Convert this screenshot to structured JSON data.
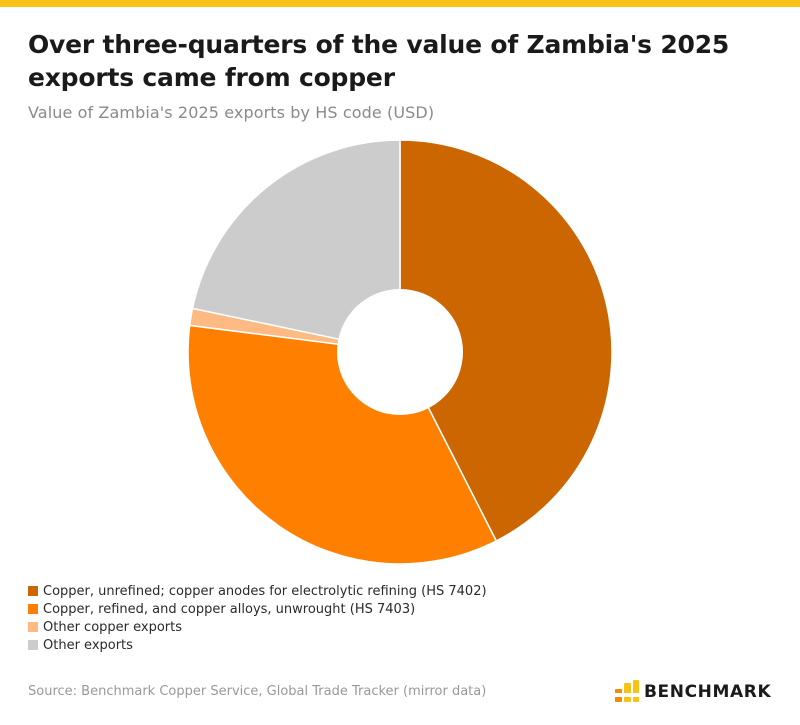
{
  "colors": {
    "accent_bar": "#F9C315",
    "background": "#ffffff"
  },
  "header": {
    "title": "Over three-quarters of the value of Zambia's 2025 exports came from copper",
    "subtitle": "Value of Zambia's 2025 exports by HS code (USD)"
  },
  "chart_data": {
    "type": "pie",
    "style": "donut",
    "title": "Over three-quarters of the value of Zambia's 2025 exports came from copper",
    "subtitle": "Value of Zambia's 2025 exports by HS code (USD)",
    "start": "12 o'clock, clockwise",
    "legend_position": "bottom-left",
    "series": [
      {
        "name": "Copper, unrefined; copper anodes for electrolytic refining (HS 7402)",
        "share_pct": 42.5,
        "color": "#CC6600"
      },
      {
        "name": "Copper, refined, and copper alloys, unwrought (HS 7403)",
        "share_pct": 34.5,
        "color": "#FF8000"
      },
      {
        "name": "Other copper exports",
        "share_pct": 1.3,
        "color": "#FDBA82"
      },
      {
        "name": "Other exports",
        "share_pct": 21.7,
        "color": "#CCCCCC"
      }
    ]
  },
  "footer": {
    "source": "Source: Benchmark Copper Service, Global Trade Tracker (mirror data)",
    "brand_name": "BENCHMARK",
    "brand_icon": "benchmark-logo-icon",
    "brand_colors": [
      "#F9C315",
      "#F28C00"
    ]
  }
}
